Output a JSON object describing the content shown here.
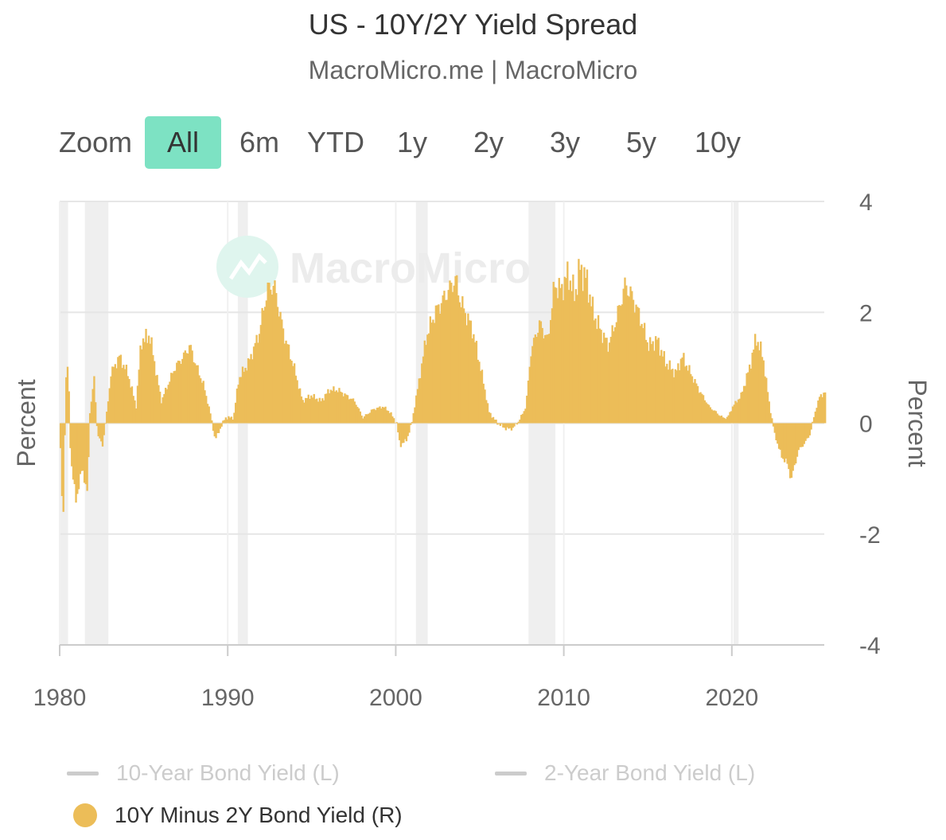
{
  "header": {
    "title": "US - 10Y/2Y Yield Spread",
    "subtitle": "MacroMicro.me | MacroMicro"
  },
  "zoom": {
    "label": "Zoom",
    "buttons": [
      "All",
      "6m",
      "YTD",
      "1y",
      "2y",
      "3y",
      "5y",
      "10y"
    ],
    "active": "All"
  },
  "watermark": "MacroMicro",
  "colors": {
    "spread": "#ecbd58",
    "recession": "#efefef",
    "grid": "#e6e6e6",
    "zoom_active": "#7de2c3",
    "inactive_legend": "#cccccc"
  },
  "legend": [
    {
      "label": "10-Year Bond Yield (L)",
      "state": "hidden",
      "marker": "line"
    },
    {
      "label": "2-Year Bond Yield (L)",
      "state": "hidden",
      "marker": "line"
    },
    {
      "label": "10Y Minus 2Y Bond Yield (R)",
      "state": "visible",
      "marker": "circle"
    }
  ],
  "chart_data": {
    "type": "bar",
    "yaxis_left_title": "Percent",
    "yaxis_right_title": "Percent",
    "ylim": [
      -4,
      4
    ],
    "yticks": [
      4,
      2,
      0,
      -2,
      -4
    ],
    "xlim": [
      1980,
      2025.5
    ],
    "xticks": [
      1980,
      1990,
      2000,
      2010,
      2020
    ],
    "grid": true,
    "recessions": [
      [
        1980.0,
        1980.5
      ],
      [
        1981.5,
        1982.9
      ],
      [
        1990.6,
        1991.2
      ],
      [
        2001.2,
        2001.9
      ],
      [
        2007.9,
        2009.5
      ],
      [
        2020.1,
        2020.4
      ]
    ],
    "series": [
      {
        "name": "10Y Minus 2Y Bond Yield (R)",
        "keypoints": [
          [
            1980.0,
            -0.5
          ],
          [
            1980.15,
            -1.95
          ],
          [
            1980.3,
            0.7
          ],
          [
            1980.45,
            1.1
          ],
          [
            1980.6,
            -0.6
          ],
          [
            1980.9,
            -1.4
          ],
          [
            1981.3,
            -0.8
          ],
          [
            1981.6,
            -1.3
          ],
          [
            1981.75,
            0.2
          ],
          [
            1982.0,
            0.8
          ],
          [
            1982.2,
            -0.2
          ],
          [
            1982.5,
            -0.4
          ],
          [
            1982.8,
            0.3
          ],
          [
            1983.0,
            0.9
          ],
          [
            1983.5,
            1.2
          ],
          [
            1984.0,
            0.9
          ],
          [
            1984.5,
            0.3
          ],
          [
            1984.8,
            1.5
          ],
          [
            1985.0,
            1.5
          ],
          [
            1985.3,
            1.6
          ],
          [
            1985.7,
            0.9
          ],
          [
            1986.0,
            0.4
          ],
          [
            1986.4,
            0.7
          ],
          [
            1986.8,
            1.0
          ],
          [
            1987.3,
            1.2
          ],
          [
            1987.7,
            1.4
          ],
          [
            1988.0,
            1.1
          ],
          [
            1988.5,
            0.7
          ],
          [
            1988.9,
            0.2
          ],
          [
            1989.2,
            -0.3
          ],
          [
            1989.5,
            -0.1
          ],
          [
            1989.8,
            0.1
          ],
          [
            1990.3,
            0.1
          ],
          [
            1990.6,
            0.8
          ],
          [
            1991.2,
            1.1
          ],
          [
            1991.8,
            1.6
          ],
          [
            1992.3,
            2.4
          ],
          [
            1992.7,
            2.5
          ],
          [
            1993.3,
            1.6
          ],
          [
            1993.9,
            1.0
          ],
          [
            1994.4,
            0.4
          ],
          [
            1994.9,
            0.5
          ],
          [
            1995.5,
            0.4
          ],
          [
            1996.0,
            0.6
          ],
          [
            1996.5,
            0.6
          ],
          [
            1997.0,
            0.5
          ],
          [
            1997.5,
            0.4
          ],
          [
            1998.0,
            0.1
          ],
          [
            1998.6,
            0.25
          ],
          [
            1999.2,
            0.3
          ],
          [
            1999.6,
            0.2
          ],
          [
            2000.0,
            0.0
          ],
          [
            2000.2,
            -0.4
          ],
          [
            2000.6,
            -0.3
          ],
          [
            2000.9,
            0.0
          ],
          [
            2001.3,
            0.7
          ],
          [
            2001.8,
            1.6
          ],
          [
            2002.3,
            2.0
          ],
          [
            2002.9,
            2.3
          ],
          [
            2003.5,
            2.6
          ],
          [
            2003.8,
            2.2
          ],
          [
            2004.5,
            1.7
          ],
          [
            2005.0,
            1.0
          ],
          [
            2005.5,
            0.2
          ],
          [
            2006.0,
            0.0
          ],
          [
            2006.5,
            -0.1
          ],
          [
            2006.9,
            -0.1
          ],
          [
            2007.3,
            0.05
          ],
          [
            2007.7,
            0.3
          ],
          [
            2008.0,
            1.3
          ],
          [
            2008.5,
            1.8
          ],
          [
            2009.0,
            1.5
          ],
          [
            2009.4,
            2.5
          ],
          [
            2009.8,
            2.4
          ],
          [
            2010.2,
            2.7
          ],
          [
            2010.6,
            2.3
          ],
          [
            2010.9,
            2.8
          ],
          [
            2011.3,
            2.6
          ],
          [
            2011.7,
            2.0
          ],
          [
            2012.1,
            1.7
          ],
          [
            2012.6,
            1.4
          ],
          [
            2013.1,
            1.9
          ],
          [
            2013.6,
            2.5
          ],
          [
            2014.0,
            2.3
          ],
          [
            2014.5,
            1.9
          ],
          [
            2015.0,
            1.4
          ],
          [
            2015.5,
            1.5
          ],
          [
            2016.0,
            1.1
          ],
          [
            2016.6,
            0.9
          ],
          [
            2017.0,
            1.2
          ],
          [
            2017.5,
            0.9
          ],
          [
            2018.0,
            0.6
          ],
          [
            2018.6,
            0.3
          ],
          [
            2019.0,
            0.2
          ],
          [
            2019.4,
            0.1
          ],
          [
            2019.7,
            0.1
          ],
          [
            2020.0,
            0.3
          ],
          [
            2020.5,
            0.5
          ],
          [
            2021.0,
            1.0
          ],
          [
            2021.4,
            1.55
          ],
          [
            2021.8,
            1.2
          ],
          [
            2022.2,
            0.3
          ],
          [
            2022.5,
            -0.2
          ],
          [
            2022.9,
            -0.6
          ],
          [
            2023.2,
            -0.7
          ],
          [
            2023.5,
            -1.0
          ],
          [
            2023.9,
            -0.5
          ],
          [
            2024.3,
            -0.35
          ],
          [
            2024.6,
            -0.2
          ],
          [
            2024.9,
            0.2
          ],
          [
            2025.2,
            0.5
          ],
          [
            2025.5,
            0.55
          ]
        ]
      }
    ]
  }
}
